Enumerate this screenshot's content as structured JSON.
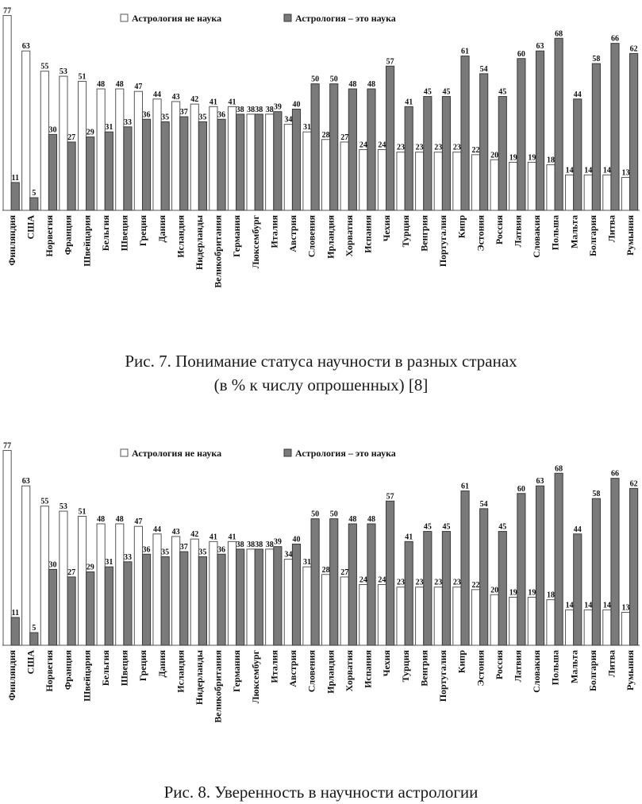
{
  "chart_data": [
    {
      "type": "bar",
      "legend_position": "top",
      "categories": [
        "Финляндия",
        "США",
        "Норвегия",
        "Франция",
        "Швейцария",
        "Бельгия",
        "Швеция",
        "Греция",
        "Дания",
        "Исландия",
        "Нидерланды",
        "Великобритания",
        "Германия",
        "Люксембург",
        "Италия",
        "Австрия",
        "Словения",
        "Ирландия",
        "Хорватия",
        "Испания",
        "Чехия",
        "Турция",
        "Венгрия",
        "Португалия",
        "Кипр",
        "Эстония",
        "Россия",
        "Латвия",
        "Словакия",
        "Польша",
        "Мальта",
        "Болгария",
        "Литва",
        "Румыния"
      ],
      "series": [
        {
          "name": "Астрология не наука",
          "values": [
            77,
            63,
            55,
            53,
            51,
            48,
            48,
            47,
            44,
            43,
            42,
            41,
            41,
            38,
            38,
            34,
            31,
            28,
            27,
            24,
            24,
            23,
            23,
            23,
            23,
            22,
            20,
            19,
            19,
            18,
            14,
            14,
            14,
            13
          ]
        },
        {
          "name": "Астрология – это наука",
          "values": [
            11,
            5,
            30,
            27,
            29,
            31,
            33,
            36,
            35,
            37,
            35,
            36,
            38,
            38,
            39,
            40,
            50,
            50,
            48,
            48,
            57,
            41,
            45,
            45,
            61,
            54,
            45,
            60,
            63,
            68,
            44,
            58,
            66,
            62
          ]
        }
      ],
      "ylim": [
        0,
        80
      ]
    },
    {
      "type": "bar",
      "legend_position": "top",
      "categories": [
        "Финляндия",
        "США",
        "Норвегия",
        "Франция",
        "Швейцария",
        "Бельгия",
        "Швеция",
        "Греция",
        "Дания",
        "Исландия",
        "Нидерланды",
        "Великобритания",
        "Германия",
        "Люксембург",
        "Италия",
        "Австрия",
        "Словения",
        "Ирландия",
        "Хорватия",
        "Испания",
        "Чехия",
        "Турция",
        "Венгрия",
        "Португалия",
        "Кипр",
        "Эстония",
        "Россия",
        "Латвия",
        "Словакия",
        "Польша",
        "Мальта",
        "Болгария",
        "Литва",
        "Румыния"
      ],
      "series": [
        {
          "name": "Астрология не наука",
          "values": [
            77,
            63,
            55,
            53,
            51,
            48,
            48,
            47,
            44,
            43,
            42,
            41,
            41,
            38,
            38,
            34,
            31,
            28,
            27,
            24,
            24,
            23,
            23,
            23,
            23,
            22,
            20,
            19,
            19,
            18,
            14,
            14,
            14,
            13
          ]
        },
        {
          "name": "Астрология – это наука",
          "values": [
            11,
            5,
            30,
            27,
            29,
            31,
            33,
            36,
            35,
            37,
            35,
            36,
            38,
            38,
            39,
            40,
            50,
            50,
            48,
            48,
            57,
            41,
            45,
            45,
            61,
            54,
            45,
            60,
            63,
            68,
            44,
            58,
            66,
            62
          ]
        }
      ],
      "ylim": [
        0,
        80
      ]
    }
  ],
  "captions": {
    "figure7": {
      "line1": "Рис. 7. Понимание статуса научности в разных странах",
      "line2": "(в % к числу опрошенных) [8]"
    },
    "figure8": {
      "line1": "Рис. 8. Уверенность в научности астрологии"
    }
  },
  "colors": {
    "bar_not_science_fill": "#ffffff",
    "bar_not_science_stroke": "#555555",
    "bar_science_fill": "#7a7a7a",
    "bar_science_stroke": "#3a3a3a",
    "text": "#111111"
  }
}
